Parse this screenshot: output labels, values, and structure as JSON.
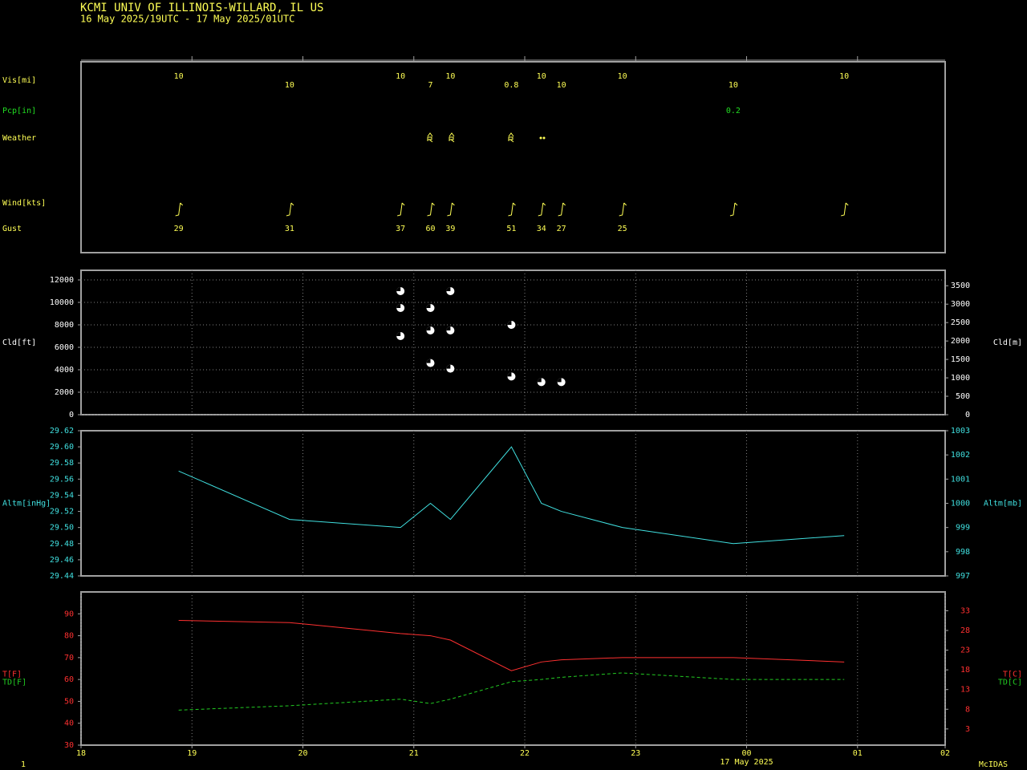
{
  "header": {
    "title": "KCMI  UNIV OF ILLINOIS-WILLARD, IL US",
    "subtitle": "16 May 2025/19UTC - 17 May 2025/01UTC"
  },
  "chart_data": [
    {
      "type": "station",
      "xlim": [
        18,
        25.79
      ],
      "xticks": [
        19,
        20,
        21,
        22,
        23,
        24,
        25
      ],
      "x": [
        18.88,
        19.88,
        20.88,
        21.15,
        21.33,
        21.88,
        22.15,
        22.33,
        22.88,
        23.88,
        24.88
      ],
      "visibility": {
        "label": "Vis[mi]",
        "color": "#ffff55",
        "values": [
          10,
          10,
          10,
          7,
          10,
          0.8,
          10,
          10,
          10,
          10,
          10
        ]
      },
      "precipitation": {
        "label": "Pcp[in]",
        "color": "#22dd22",
        "values": [
          null,
          null,
          null,
          null,
          null,
          null,
          null,
          null,
          null,
          0.2,
          null
        ]
      },
      "weather_label": "Weather",
      "wind_label": "Wind[kts]",
      "gust": {
        "label": "Gust",
        "color": "#ffff55",
        "values": [
          29,
          31,
          37,
          60,
          39,
          51,
          34,
          27,
          25,
          null,
          null
        ]
      }
    },
    {
      "type": "scatter",
      "xlim": [
        18,
        25.79
      ],
      "xticks": [
        19,
        20,
        21,
        22,
        23,
        24,
        25
      ],
      "grid": true,
      "ylabel": "Cld[ft]",
      "y2label": "Cld[m]",
      "color": "#ffffff",
      "ylim": [
        0,
        12857
      ],
      "yticks": [
        0,
        2000,
        4000,
        6000,
        8000,
        10000,
        12000
      ],
      "y2lim": [
        0,
        3919
      ],
      "y2ticks": [
        0,
        500,
        1000,
        1500,
        2000,
        2500,
        3000,
        3500
      ],
      "x": [
        20.88,
        20.88,
        20.88,
        21.15,
        21.15,
        21.15,
        21.33,
        21.33,
        21.33,
        21.88,
        21.88,
        22.15,
        22.33
      ],
      "values": [
        11000,
        9500,
        7000,
        9500,
        7500,
        4600,
        11000,
        7500,
        4100,
        8000,
        3400,
        2900,
        2900
      ]
    },
    {
      "type": "line",
      "xlim": [
        18,
        25.79
      ],
      "xticks": [
        19,
        20,
        21,
        22,
        23,
        24,
        25
      ],
      "grid": true,
      "ylabel": "Altm[inHg]",
      "y2label": "Altm[mb]",
      "color": "#40e0e0",
      "ylim": [
        29.44,
        29.62
      ],
      "yticks": [
        29.44,
        29.46,
        29.48,
        {
          "value": 29.5,
          "label": "29.50"
        },
        29.52,
        29.54,
        29.56,
        29.58,
        {
          "value": 29.6,
          "label": "29.60"
        },
        29.62
      ],
      "y2lim": [
        997,
        1003
      ],
      "y2ticks": [
        997,
        998,
        999,
        1000,
        1001,
        1002,
        1003
      ],
      "x": [
        18.88,
        19.88,
        20.88,
        21.15,
        21.33,
        21.88,
        22.15,
        22.33,
        22.88,
        23.88,
        24.88
      ],
      "series": [
        {
          "color": "#40e0e0",
          "style": "solid",
          "values": [
            29.57,
            29.51,
            29.5,
            29.53,
            29.51,
            29.6,
            29.53,
            29.52,
            29.5,
            29.48,
            29.49
          ]
        }
      ]
    },
    {
      "type": "line",
      "xlim": [
        18,
        25.79
      ],
      "grid": true,
      "xticks": [
        18,
        19,
        20,
        21,
        22,
        23,
        {
          "value": 24,
          "label": "00"
        },
        {
          "value": 25,
          "label": "01"
        },
        {
          "value": 25.79,
          "label": "02"
        }
      ],
      "annotation": "17 May 2025",
      "color": "#ff3030",
      "ylim": [
        30,
        100
      ],
      "yticks": [
        30,
        40,
        50,
        60,
        70,
        80,
        90
      ],
      "y2lim": [
        -1.11,
        37.78
      ],
      "y2ticks": [
        3,
        8,
        13,
        18,
        23,
        28,
        33
      ],
      "y2labels": [
        "T[C]",
        "TD[C]"
      ],
      "x": [
        18.88,
        19.88,
        20.88,
        21.15,
        21.33,
        21.88,
        22.15,
        22.33,
        22.88,
        23.88,
        24.88
      ],
      "series": [
        {
          "name": "T[F]",
          "color": "#ff3030",
          "style": "solid",
          "values": [
            87,
            86,
            81,
            80,
            78,
            64,
            68,
            69,
            70,
            70,
            68
          ]
        },
        {
          "name": "TD[F]",
          "color": "#22cc22",
          "style": "dashed",
          "values": [
            46,
            48,
            51,
            49,
            51,
            59,
            60,
            61,
            63,
            60,
            60
          ]
        }
      ]
    }
  ],
  "footer": {
    "page": "1",
    "software": "McIDAS"
  }
}
